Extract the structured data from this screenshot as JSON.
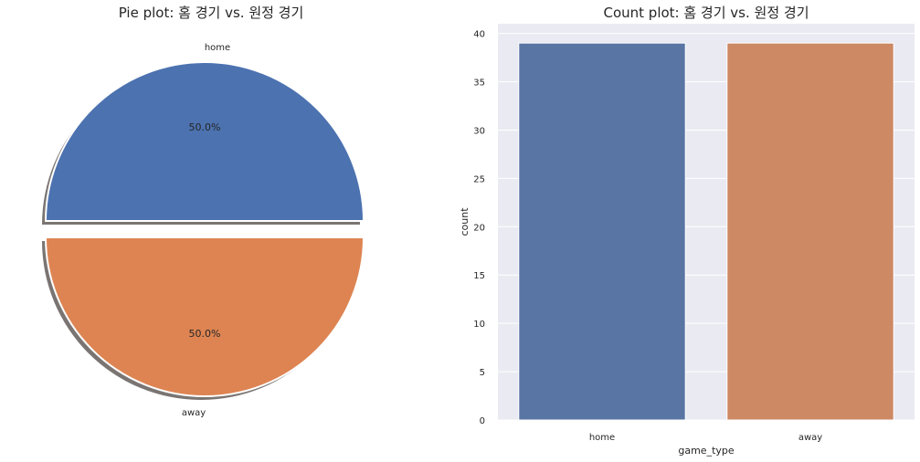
{
  "chart_data": [
    {
      "type": "pie",
      "title": "Pie plot: 홈 경기 vs. 원정 경기",
      "labels": [
        "home",
        "away"
      ],
      "values": [
        39,
        39
      ],
      "percent_labels": [
        "50.0%",
        "50.0%"
      ],
      "explode": true,
      "shadow": true,
      "colors": [
        "#4c72b0",
        "#dd8452"
      ]
    },
    {
      "type": "bar",
      "title": "Count plot: 홈 경기 vs. 원정 경기",
      "categories": [
        "home",
        "away"
      ],
      "values": [
        39,
        39
      ],
      "xlabel": "game_type",
      "ylabel": "count",
      "ylim": [
        0,
        41
      ],
      "yticks": [
        "0",
        "5",
        "10",
        "15",
        "20",
        "25",
        "30",
        "35",
        "40"
      ],
      "grid": true,
      "colors": [
        "#5975a4",
        "#cc8963"
      ],
      "background": "#eaeaf2"
    }
  ]
}
